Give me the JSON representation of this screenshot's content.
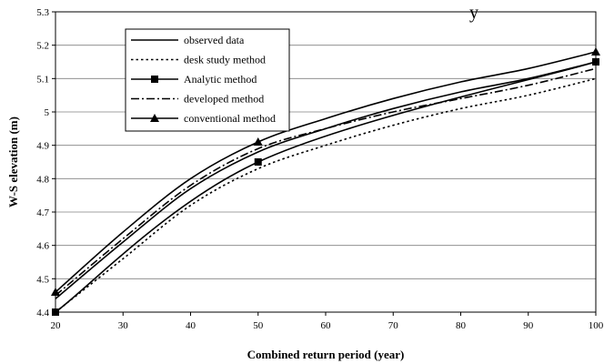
{
  "header": {
    "title_fragment": "y"
  },
  "chart_data": {
    "type": "line",
    "xlabel": "Combined return period (year)",
    "ylabel": "W-S elevation (m)",
    "xlim": [
      20,
      100
    ],
    "ylim": [
      4.4,
      5.3
    ],
    "x_ticks": [
      20,
      30,
      40,
      50,
      60,
      70,
      80,
      90,
      100
    ],
    "y_ticks": [
      4.4,
      4.5,
      4.6,
      4.7,
      4.8,
      4.9,
      5,
      5.1,
      5.2,
      5.3
    ],
    "y_tick_labels": [
      "4.4",
      "4.5",
      "4.6",
      "4.7",
      "4.8",
      "4.9",
      "5",
      "5.1",
      "5.2",
      "5.3"
    ],
    "grid": "horizontal",
    "legend_position": "top-left",
    "series": [
      {
        "name": "observed data",
        "style": "solid",
        "marker": "none",
        "color": "#000000",
        "x": [
          20,
          30,
          40,
          50,
          60,
          70,
          80,
          90,
          100
        ],
        "y": [
          4.44,
          4.61,
          4.77,
          4.88,
          4.95,
          5.01,
          5.06,
          5.1,
          5.15
        ]
      },
      {
        "name": "desk study method",
        "style": "dotted",
        "marker": "none",
        "color": "#000000",
        "x": [
          20,
          30,
          40,
          50,
          60,
          70,
          80,
          90,
          100
        ],
        "y": [
          4.4,
          4.56,
          4.72,
          4.83,
          4.9,
          4.96,
          5.01,
          5.05,
          5.1
        ]
      },
      {
        "name": "Analytic method",
        "style": "solid",
        "marker": "square",
        "color": "#000000",
        "x": [
          20,
          50,
          100
        ],
        "y": [
          4.4,
          4.85,
          5.15
        ]
      },
      {
        "name": "developed method",
        "style": "dashdot",
        "marker": "none",
        "color": "#000000",
        "x": [
          20,
          30,
          40,
          50,
          60,
          70,
          80,
          90,
          100
        ],
        "y": [
          4.45,
          4.62,
          4.78,
          4.89,
          4.95,
          5.0,
          5.04,
          5.08,
          5.13
        ]
      },
      {
        "name": "conventional method",
        "style": "solid",
        "marker": "triangle",
        "color": "#000000",
        "x": [
          20,
          30,
          40,
          50,
          60,
          70,
          80,
          90,
          100
        ],
        "y": [
          4.46,
          4.64,
          4.8,
          4.91,
          4.98,
          5.04,
          5.09,
          5.13,
          5.18
        ]
      }
    ]
  }
}
